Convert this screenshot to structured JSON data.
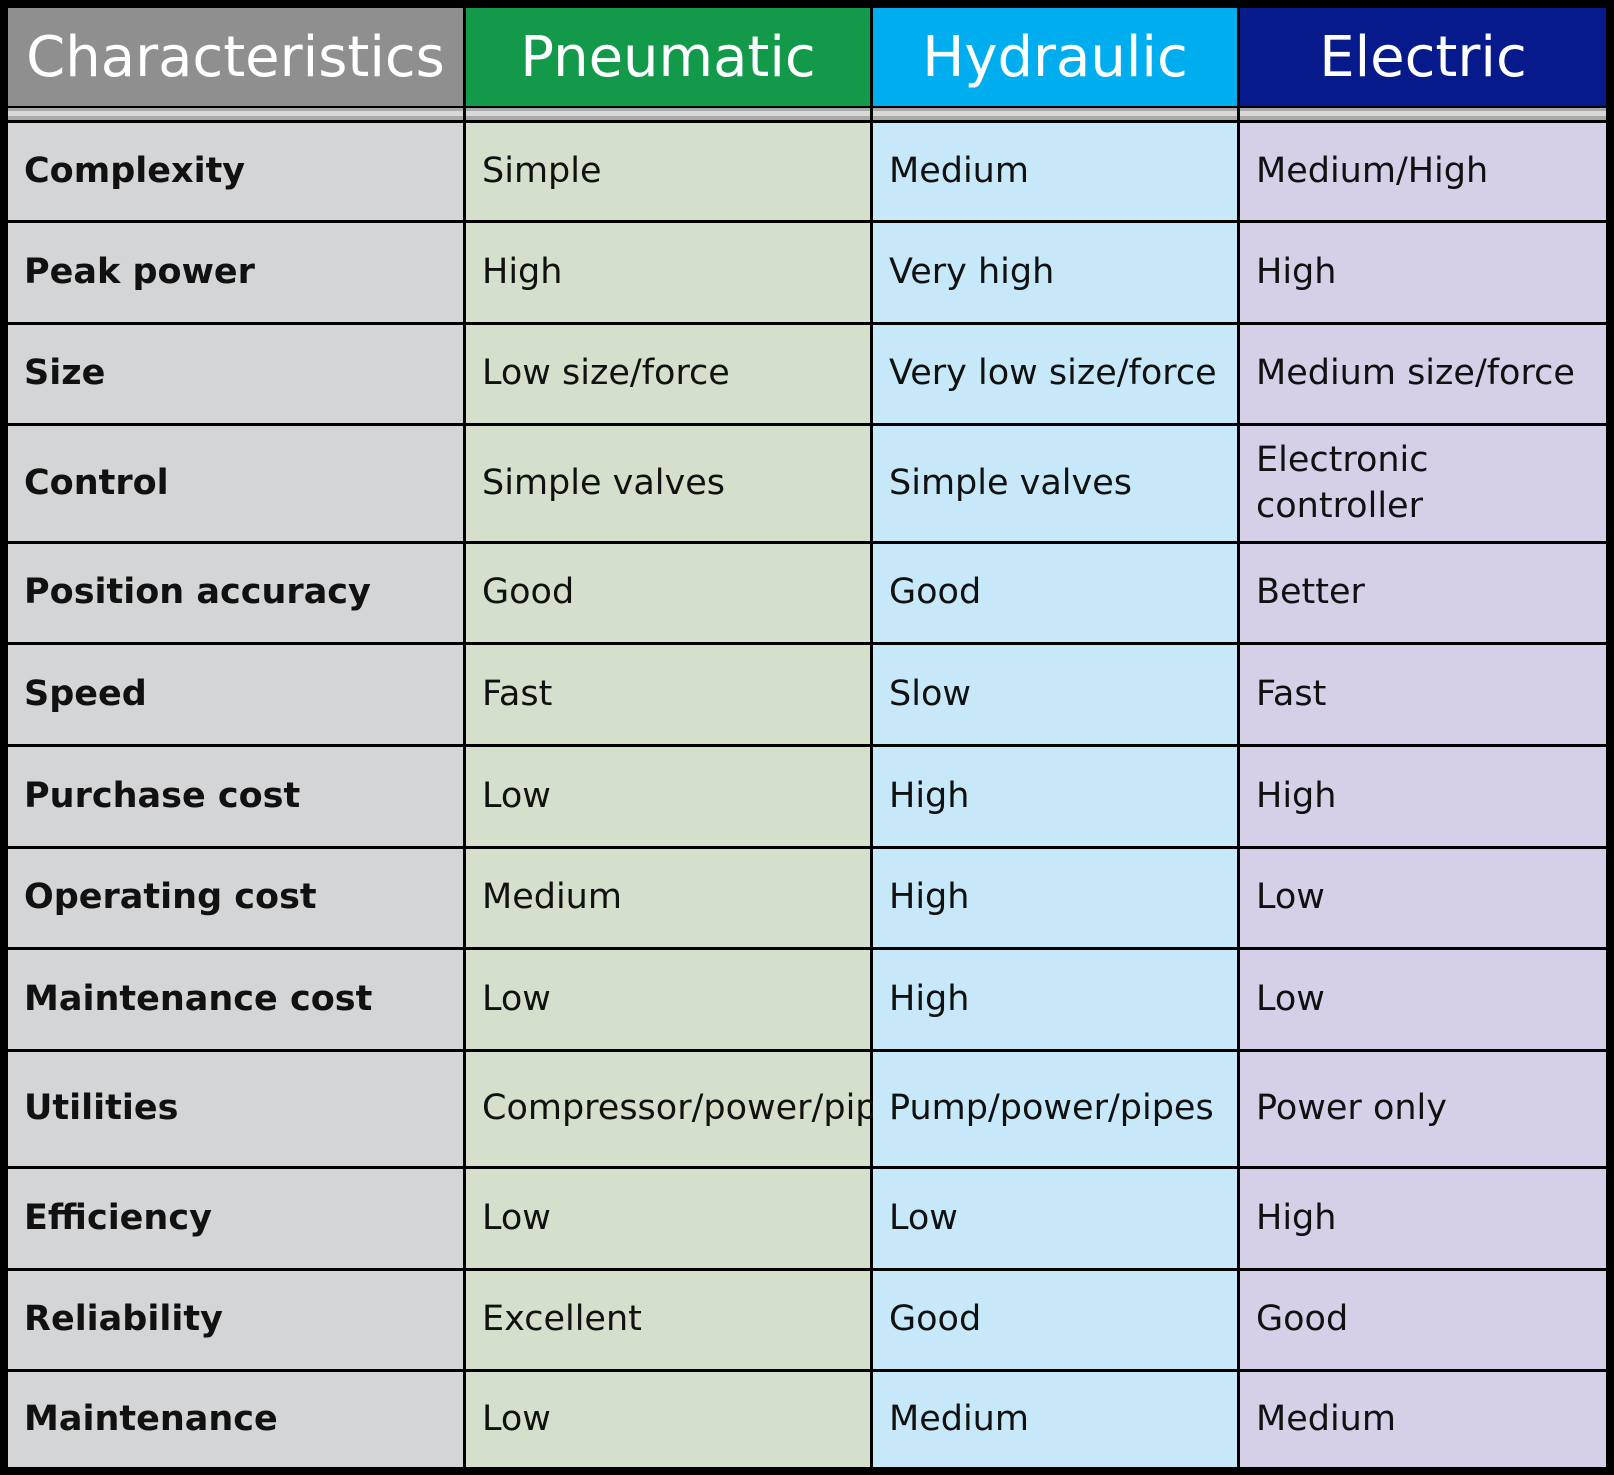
{
  "header": {
    "columns": [
      "Characteristics",
      "Pneumatic",
      "Hydraulic",
      "Electric"
    ]
  },
  "table": {
    "rows": [
      [
        "Complexity",
        "Simple",
        "Medium",
        "Medium/High"
      ],
      [
        "Peak power",
        "High",
        "Very high",
        "High"
      ],
      [
        "Size",
        "Low size/force",
        "Very low size/force",
        "Medium size/force"
      ],
      [
        "Control",
        "Simple valves",
        "Simple valves",
        "Electronic controller"
      ],
      [
        "Position accuracy",
        "Good",
        "Good",
        "Better"
      ],
      [
        "Speed",
        "Fast",
        "Slow",
        "Fast"
      ],
      [
        "Purchase cost",
        "Low",
        "High",
        "High"
      ],
      [
        "Operating cost",
        "Medium",
        "High",
        "Low"
      ],
      [
        "Maintenance cost",
        "Low",
        "High",
        "Low"
      ],
      [
        "Utilities",
        "Compressor/power/pipes",
        "Pump/power/pipes",
        "Power only"
      ],
      [
        "Efficiency",
        "Low",
        "Low",
        "High"
      ],
      [
        "Reliability",
        "Excellent",
        "Good",
        "Good"
      ],
      [
        "Maintenance",
        "Low",
        "Medium",
        "Medium"
      ]
    ]
  }
}
